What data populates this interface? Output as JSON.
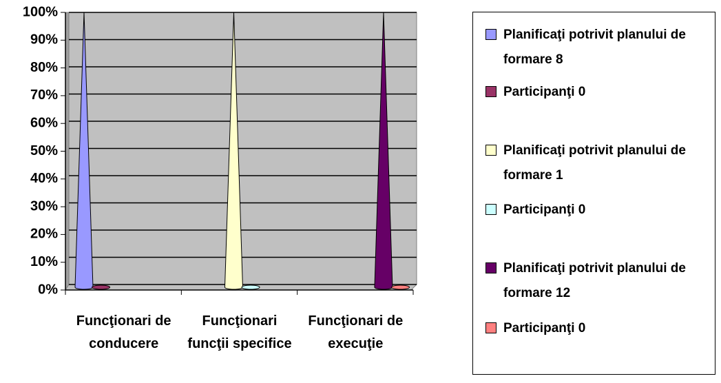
{
  "chart_data": {
    "type": "cone",
    "categories": [
      "Funcţionari de conducere",
      "Funcţionari funcţii specifice",
      "Funcţionari de execuţie"
    ],
    "series": [
      {
        "name": "Planificaţi potrivit planului de formare 8",
        "color": "#9999ff",
        "values": [
          100,
          null,
          null
        ]
      },
      {
        "name": "Participanţi 0",
        "color": "#993366",
        "values": [
          0,
          null,
          null
        ]
      },
      {
        "name": "Planificaţi potrivit planului de formare 1",
        "color": "#ffffcc",
        "values": [
          null,
          100,
          null
        ]
      },
      {
        "name": "Participanţi 0",
        "color": "#ccffff",
        "values": [
          null,
          0,
          null
        ]
      },
      {
        "name": "Planificaţi potrivit planului de formare 12",
        "color": "#660066",
        "values": [
          null,
          null,
          100
        ]
      },
      {
        "name": "Participanţi 0",
        "color": "#ff8080",
        "values": [
          null,
          null,
          0
        ]
      }
    ],
    "ylim": [
      0,
      100
    ],
    "yticks": [
      {
        "value": 0,
        "label": "0%"
      },
      {
        "value": 10,
        "label": "10%"
      },
      {
        "value": 20,
        "label": "20%"
      },
      {
        "value": 30,
        "label": "30%"
      },
      {
        "value": 40,
        "label": "40%"
      },
      {
        "value": 50,
        "label": "50%"
      },
      {
        "value": 60,
        "label": "60%"
      },
      {
        "value": 70,
        "label": "70%"
      },
      {
        "value": 80,
        "label": "80%"
      },
      {
        "value": 90,
        "label": "90%"
      },
      {
        "value": 100,
        "label": "100%"
      }
    ],
    "grid": true,
    "legend": "right"
  }
}
